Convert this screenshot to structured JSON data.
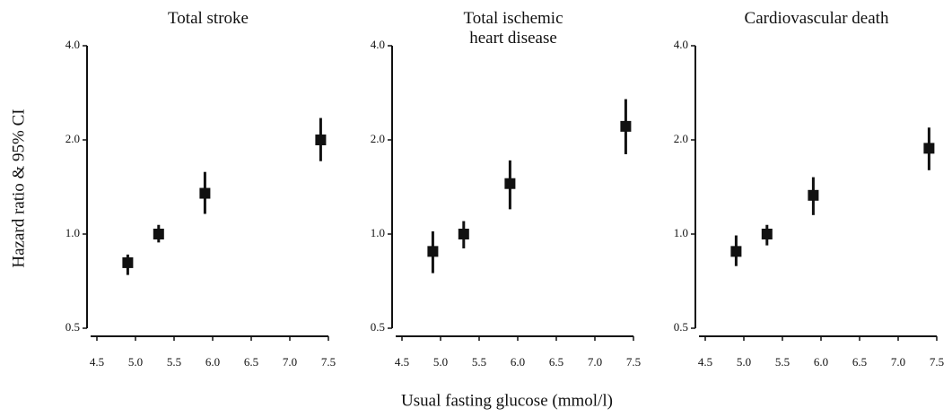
{
  "ylabel": "Hazard ratio & 95% CI",
  "xlabel": "Usual fasting glucose (mmol/l)",
  "chart_data": [
    {
      "type": "errorbar",
      "title": "Total stroke",
      "x": [
        4.9,
        5.3,
        5.9,
        7.4
      ],
      "values": [
        0.81,
        1.0,
        1.35,
        2.0
      ],
      "ci_low": [
        0.74,
        0.94,
        1.16,
        1.71
      ],
      "ci_high": [
        0.86,
        1.07,
        1.58,
        2.35
      ],
      "color": "#111111",
      "log_y": true,
      "xlim": [
        4.5,
        7.5
      ],
      "xticks": [
        4.5,
        {
          "value": 5,
          "label": "5.0"
        },
        5.5,
        {
          "value": 6,
          "label": "6.0"
        },
        6.5,
        {
          "value": 7,
          "label": "7.0"
        },
        7.5
      ],
      "ylim": [
        0.5,
        4
      ],
      "yticks": [
        0.5,
        {
          "value": 1,
          "label": "1.0"
        },
        {
          "value": 2,
          "label": "2.0"
        },
        {
          "value": 4,
          "label": "4.0"
        }
      ]
    },
    {
      "type": "errorbar",
      "title": "Total ischemic\nheart disease",
      "x": [
        4.9,
        5.3,
        5.9,
        7.4
      ],
      "values": [
        0.88,
        1.0,
        1.45,
        2.21
      ],
      "ci_low": [
        0.75,
        0.9,
        1.2,
        1.8
      ],
      "ci_high": [
        1.02,
        1.1,
        1.72,
        2.7
      ],
      "color": "#111111",
      "log_y": true,
      "xlim": [
        4.5,
        7.5
      ],
      "xticks": [
        4.5,
        {
          "value": 5,
          "label": "5.0"
        },
        5.5,
        {
          "value": 6,
          "label": "6.0"
        },
        6.5,
        {
          "value": 7,
          "label": "7.0"
        },
        7.5
      ],
      "ylim": [
        0.5,
        4
      ],
      "yticks": [
        0.5,
        {
          "value": 1,
          "label": "1.0"
        },
        {
          "value": 2,
          "label": "2.0"
        },
        {
          "value": 4,
          "label": "4.0"
        }
      ]
    },
    {
      "type": "errorbar",
      "title": "Cardiovascular death",
      "x": [
        4.9,
        5.3,
        5.9,
        7.4
      ],
      "values": [
        0.88,
        1.0,
        1.33,
        1.88
      ],
      "ci_low": [
        0.79,
        0.92,
        1.15,
        1.6
      ],
      "ci_high": [
        0.99,
        1.07,
        1.52,
        2.19
      ],
      "color": "#111111",
      "log_y": true,
      "xlim": [
        4.5,
        7.5
      ],
      "xticks": [
        4.5,
        {
          "value": 5,
          "label": "5.0"
        },
        5.5,
        {
          "value": 6,
          "label": "6.0"
        },
        6.5,
        {
          "value": 7,
          "label": "7.0"
        },
        7.5
      ],
      "ylim": [
        0.5,
        4
      ],
      "yticks": [
        0.5,
        {
          "value": 1,
          "label": "1.0"
        },
        {
          "value": 2,
          "label": "2.0"
        },
        {
          "value": 4,
          "label": "4.0"
        }
      ]
    }
  ]
}
